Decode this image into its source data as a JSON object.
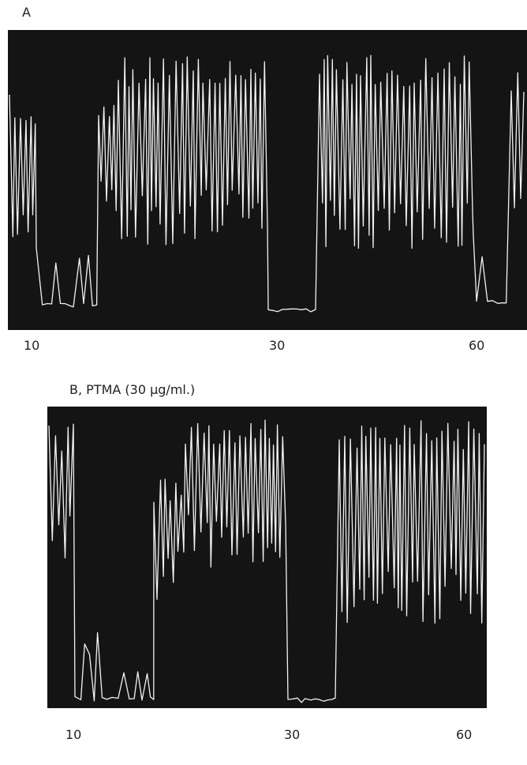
{
  "panels": [
    {
      "label": "A",
      "markers": [
        10,
        30,
        60
      ]
    },
    {
      "label": "B, PTMA (30 µg/ml.)",
      "markers": [
        10,
        30,
        60
      ]
    }
  ]
}
